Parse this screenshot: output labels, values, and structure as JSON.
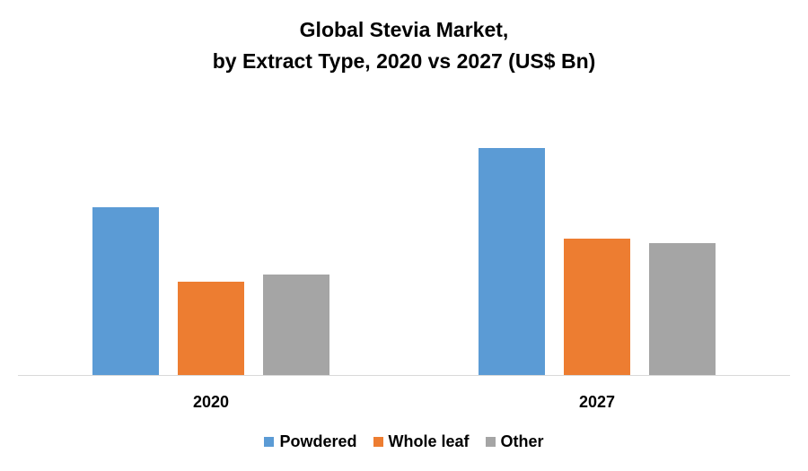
{
  "chart_data": {
    "type": "bar",
    "title": "Global Stevia Market,",
    "subtitle": "by Extract Type, 2020 vs 2027 (US$ Bn)",
    "categories": [
      "2020",
      "2027"
    ],
    "series": [
      {
        "name": "Powdered",
        "values": [
          187,
          253
        ],
        "color": "#5B9BD5"
      },
      {
        "name": "Whole leaf",
        "values": [
          104,
          152
        ],
        "color": "#ED7D31"
      },
      {
        "name": "Other",
        "values": [
          112,
          147
        ],
        "color": "#A5A5A5"
      }
    ],
    "ylim": [
      0,
      300
    ],
    "note_values": "relative heights; no value axis is printed",
    "grid": false,
    "legend_position": "bottom"
  }
}
